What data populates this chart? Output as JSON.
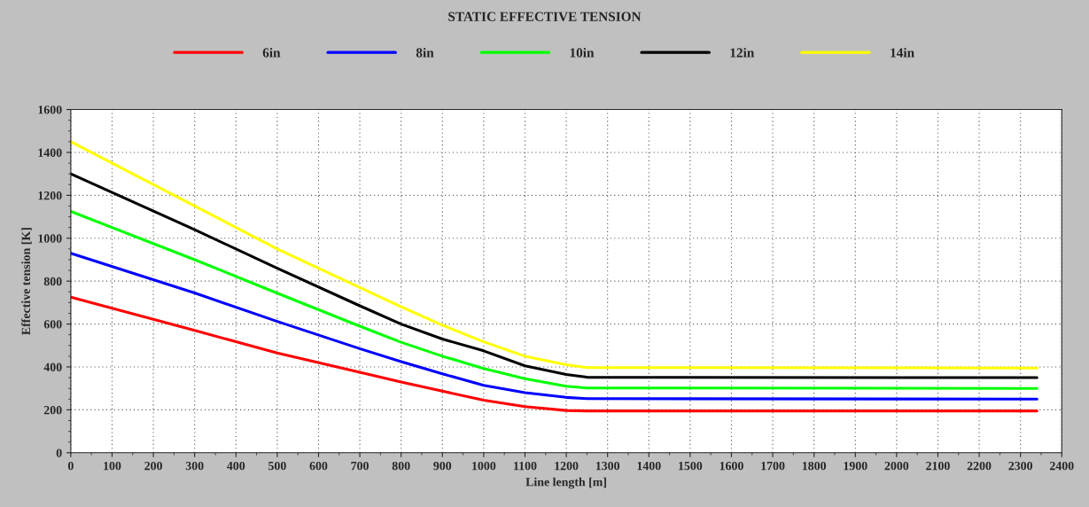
{
  "chart_data": {
    "type": "line",
    "title": "STATIC EFFECTIVE TENSION",
    "xlabel": "Line length [m]",
    "ylabel": "Effective tension [K]",
    "x": [
      0,
      300,
      500,
      700,
      800,
      900,
      1000,
      1100,
      1200,
      1250,
      2340
    ],
    "series": [
      {
        "name": "6in",
        "color": "#ff0000",
        "values": [
          725,
          570,
          465,
          375,
          330,
          287,
          245,
          215,
          197,
          195,
          195
        ]
      },
      {
        "name": "8in",
        "color": "#0000ff",
        "values": [
          930,
          745,
          612,
          485,
          425,
          368,
          314,
          280,
          258,
          252,
          250
        ]
      },
      {
        "name": "10in",
        "color": "#00ff00",
        "values": [
          1125,
          900,
          744,
          590,
          515,
          450,
          393,
          345,
          310,
          302,
          300
        ]
      },
      {
        "name": "12in",
        "color": "#000000",
        "values": [
          1300,
          1040,
          860,
          685,
          600,
          530,
          475,
          405,
          365,
          352,
          350
        ]
      },
      {
        "name": "14in",
        "color": "#ffff00",
        "values": [
          1450,
          1150,
          950,
          770,
          680,
          595,
          517,
          450,
          410,
          397,
          395
        ]
      }
    ],
    "xlim": [
      0,
      2400
    ],
    "ylim": [
      0,
      1600
    ],
    "xticks": [
      0,
      100,
      200,
      300,
      400,
      500,
      600,
      700,
      800,
      900,
      1000,
      1100,
      1200,
      1300,
      1400,
      1500,
      1600,
      1700,
      1800,
      1900,
      2000,
      2100,
      2200,
      2300,
      2400
    ],
    "yticks": [
      0,
      200,
      400,
      600,
      800,
      1000,
      1200,
      1400,
      1600
    ],
    "grid": true,
    "legend": "top",
    "marker": "none",
    "line_style": "solid"
  }
}
